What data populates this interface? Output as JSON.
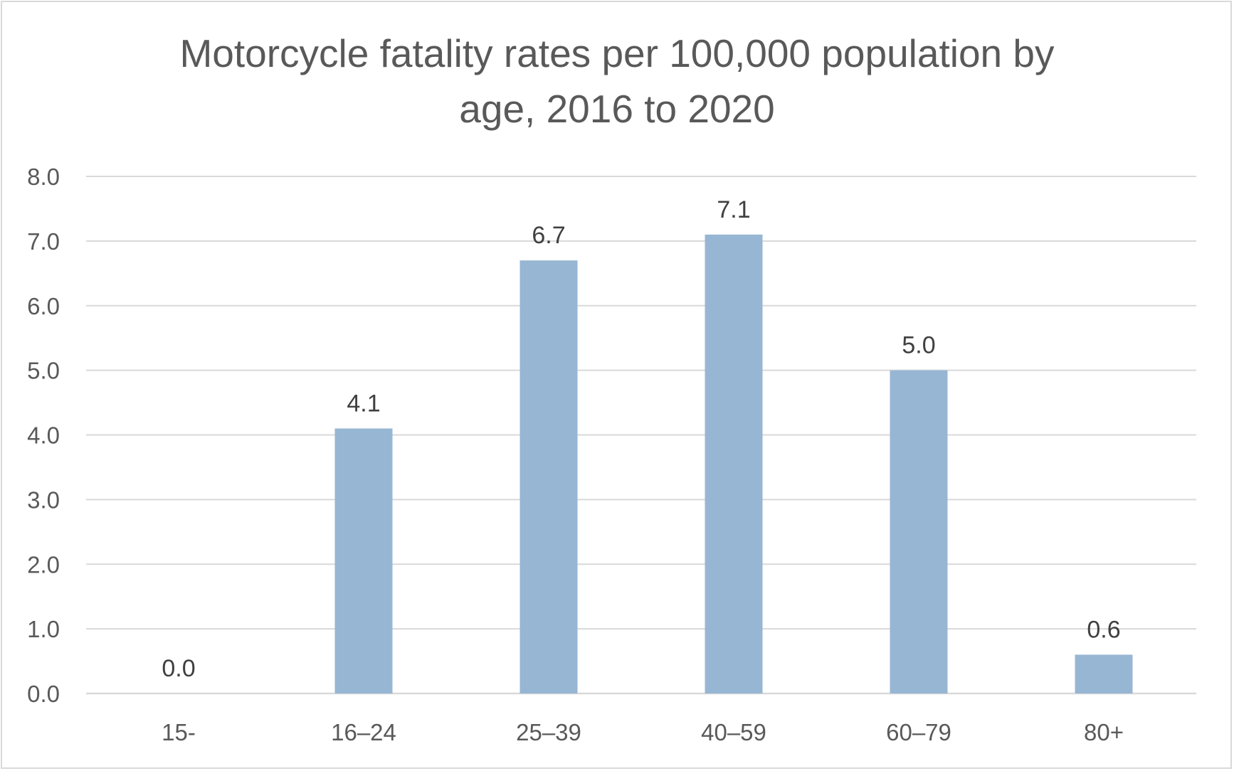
{
  "chart_data": {
    "type": "bar",
    "title_lines": [
      "Motorcycle fatality rates per 100,000 population by",
      "age, 2016 to 2020"
    ],
    "categories": [
      "15-",
      "16–24",
      "25–39",
      "40–59",
      "60–79",
      "80+"
    ],
    "values": [
      0.0,
      4.1,
      6.7,
      7.1,
      5.0,
      0.6
    ],
    "data_labels": [
      "0.0",
      "4.1",
      "6.7",
      "7.1",
      "5.0",
      "0.6"
    ],
    "y_ticks": [
      "0.0",
      "1.0",
      "2.0",
      "3.0",
      "4.0",
      "5.0",
      "6.0",
      "7.0",
      "8.0"
    ],
    "ylim": [
      0,
      8
    ],
    "xlabel": "",
    "ylabel": "",
    "grid": true,
    "legend": "none",
    "bar_color": "#97b6d3"
  }
}
